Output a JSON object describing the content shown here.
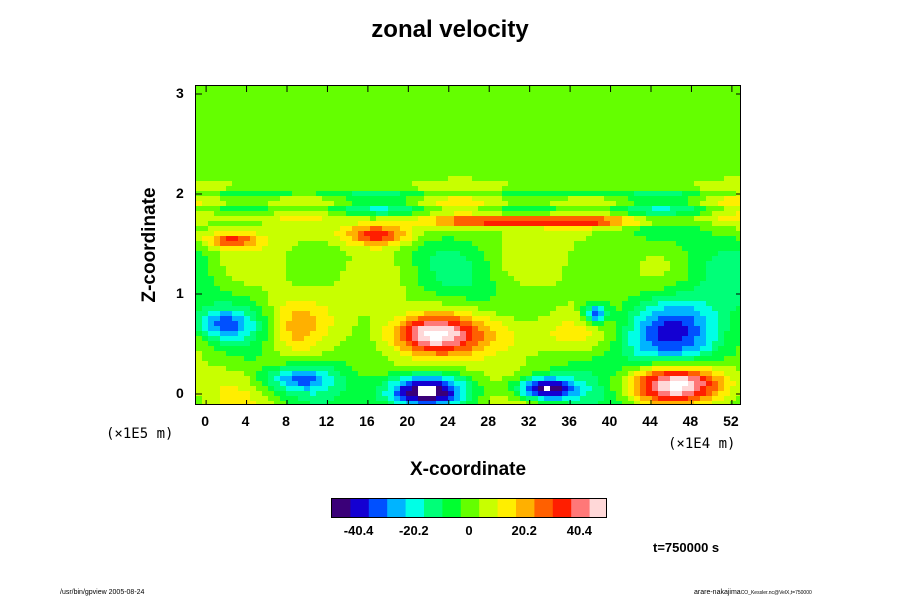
{
  "chart_data": {
    "type": "heatmap",
    "title": "zonal velocity",
    "xlabel": "X-coordinate",
    "ylabel": "Z-coordinate",
    "x_ticks": [
      "0",
      "4",
      "8",
      "12",
      "16",
      "20",
      "24",
      "28",
      "32",
      "36",
      "40",
      "44",
      "48",
      "52"
    ],
    "y_ticks": [
      "0",
      "1",
      "2",
      "3"
    ],
    "x_scale_label": "(×1E4 m)",
    "y_scale_label": "(×1E5 m)",
    "xlim": [
      -1,
      53
    ],
    "ylim": [
      -0.12,
      3.08
    ],
    "colorbar": {
      "ticks": [
        "-40.4",
        "-20.2",
        "0",
        "20.2",
        "40.4"
      ],
      "colors": [
        "#3a0078",
        "#1400d2",
        "#0050ff",
        "#00b4ff",
        "#00ffe6",
        "#00ff78",
        "#00ff30",
        "#64ff00",
        "#c8ff00",
        "#ffee00",
        "#ffb000",
        "#ff6000",
        "#ff1e00",
        "#ff7878",
        "#ffd8d8"
      ]
    },
    "features": [
      {
        "x": 21.5,
        "z": 0.03,
        "value": -55,
        "rx": 4.0,
        "rz": 0.16,
        "note": "below colour range"
      },
      {
        "x": 33.5,
        "z": 0.05,
        "value": -55,
        "rx": 3.0,
        "rz": 0.12,
        "note": "below colour range"
      },
      {
        "x": 46.5,
        "z": 0.1,
        "value": 55,
        "rx": 5.0,
        "rz": 0.2,
        "note": "above colour range"
      },
      {
        "x": 46.5,
        "z": 0.6,
        "value": -40,
        "rx": 6.0,
        "rz": 0.4
      },
      {
        "x": 38.5,
        "z": 0.8,
        "value": -40,
        "rx": 1.2,
        "rz": 0.1
      },
      {
        "x": 17.0,
        "z": 1.6,
        "value": 40,
        "rx": 3.5,
        "rz": 0.12
      },
      {
        "x": 33.0,
        "z": 1.72,
        "value": 35,
        "rx": 12.0,
        "rz": 0.05
      },
      {
        "x": 22.0,
        "z": 0.6,
        "value": 38,
        "rx": 4.0,
        "rz": 0.18
      },
      {
        "x": 31.0,
        "z": 0.6,
        "value": 22,
        "rx": 8.0,
        "rz": 0.25
      },
      {
        "x": 8.5,
        "z": 0.65,
        "value": 18,
        "rx": 3.0,
        "rz": 0.35
      },
      {
        "x": 2.5,
        "z": 1.54,
        "value": 30,
        "rx": 2.5,
        "rz": 0.07
      },
      {
        "x": 1.5,
        "z": 0.7,
        "value": -25,
        "rx": 3.0,
        "rz": 0.15
      },
      {
        "x": 9.0,
        "z": 0.15,
        "value": -25,
        "rx": 3.5,
        "rz": 0.12
      }
    ]
  },
  "time_label": "t=750000 s",
  "footer": {
    "left": "/usr/bin/gpview 2005-08-24",
    "right_main": "arare-nakajima",
    "right_small": "CO_Kessler.nc@VelX,t=750000"
  }
}
